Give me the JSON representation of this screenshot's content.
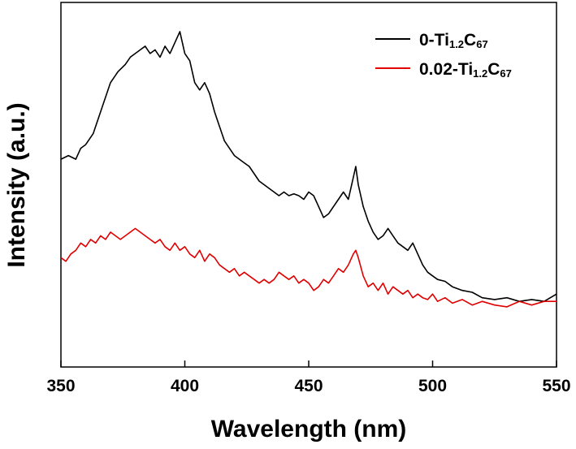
{
  "chart_data": {
    "type": "line",
    "xlabel": "Wavelength (nm)",
    "ylabel": "Intensity (a.u.)",
    "xlim": [
      350,
      550
    ],
    "ylim": [
      0,
      1
    ],
    "x_ticks": [
      350,
      400,
      450,
      500,
      550
    ],
    "y_ticks_labeled": false,
    "grid": false,
    "legend_position": "top-right",
    "series": [
      {
        "name": "0-Ti1.2C67",
        "name_parts": {
          "prefix": "0-Ti",
          "sub1": "1.2",
          "mid": "C",
          "sub2": "67"
        },
        "color": "#000000",
        "points": [
          [
            350,
            0.57
          ],
          [
            353,
            0.58
          ],
          [
            356,
            0.57
          ],
          [
            358,
            0.6
          ],
          [
            360,
            0.61
          ],
          [
            363,
            0.64
          ],
          [
            366,
            0.7
          ],
          [
            368,
            0.74
          ],
          [
            370,
            0.78
          ],
          [
            373,
            0.81
          ],
          [
            376,
            0.83
          ],
          [
            378,
            0.85
          ],
          [
            380,
            0.86
          ],
          [
            382,
            0.87
          ],
          [
            384,
            0.88
          ],
          [
            386,
            0.86
          ],
          [
            388,
            0.87
          ],
          [
            390,
            0.85
          ],
          [
            392,
            0.88
          ],
          [
            394,
            0.86
          ],
          [
            396,
            0.89
          ],
          [
            398,
            0.92
          ],
          [
            400,
            0.86
          ],
          [
            402,
            0.84
          ],
          [
            404,
            0.78
          ],
          [
            406,
            0.76
          ],
          [
            408,
            0.78
          ],
          [
            410,
            0.75
          ],
          [
            412,
            0.7
          ],
          [
            414,
            0.66
          ],
          [
            416,
            0.62
          ],
          [
            418,
            0.6
          ],
          [
            420,
            0.58
          ],
          [
            422,
            0.57
          ],
          [
            424,
            0.56
          ],
          [
            426,
            0.55
          ],
          [
            428,
            0.53
          ],
          [
            430,
            0.51
          ],
          [
            432,
            0.5
          ],
          [
            434,
            0.49
          ],
          [
            436,
            0.48
          ],
          [
            438,
            0.47
          ],
          [
            440,
            0.48
          ],
          [
            442,
            0.47
          ],
          [
            444,
            0.475
          ],
          [
            446,
            0.47
          ],
          [
            448,
            0.46
          ],
          [
            450,
            0.48
          ],
          [
            452,
            0.47
          ],
          [
            454,
            0.44
          ],
          [
            456,
            0.41
          ],
          [
            458,
            0.42
          ],
          [
            460,
            0.44
          ],
          [
            462,
            0.46
          ],
          [
            464,
            0.48
          ],
          [
            466,
            0.46
          ],
          [
            468,
            0.52
          ],
          [
            469,
            0.55
          ],
          [
            470,
            0.5
          ],
          [
            472,
            0.44
          ],
          [
            474,
            0.4
          ],
          [
            476,
            0.37
          ],
          [
            478,
            0.35
          ],
          [
            480,
            0.36
          ],
          [
            482,
            0.38
          ],
          [
            484,
            0.36
          ],
          [
            486,
            0.34
          ],
          [
            488,
            0.33
          ],
          [
            490,
            0.32
          ],
          [
            492,
            0.34
          ],
          [
            494,
            0.31
          ],
          [
            496,
            0.28
          ],
          [
            498,
            0.26
          ],
          [
            500,
            0.25
          ],
          [
            502,
            0.24
          ],
          [
            505,
            0.235
          ],
          [
            508,
            0.22
          ],
          [
            512,
            0.21
          ],
          [
            516,
            0.205
          ],
          [
            520,
            0.19
          ],
          [
            525,
            0.185
          ],
          [
            530,
            0.19
          ],
          [
            535,
            0.18
          ],
          [
            540,
            0.185
          ],
          [
            545,
            0.18
          ],
          [
            550,
            0.2
          ]
        ]
      },
      {
        "name": "0.02-Ti1.2C67",
        "name_parts": {
          "prefix": "0.02-Ti",
          "sub1": "1.2",
          "mid": "C",
          "sub2": "67"
        },
        "color": "#e00000",
        "points": [
          [
            350,
            0.3
          ],
          [
            352,
            0.29
          ],
          [
            354,
            0.31
          ],
          [
            356,
            0.32
          ],
          [
            358,
            0.34
          ],
          [
            360,
            0.33
          ],
          [
            362,
            0.35
          ],
          [
            364,
            0.34
          ],
          [
            366,
            0.36
          ],
          [
            368,
            0.35
          ],
          [
            370,
            0.37
          ],
          [
            372,
            0.36
          ],
          [
            374,
            0.35
          ],
          [
            376,
            0.36
          ],
          [
            378,
            0.37
          ],
          [
            380,
            0.38
          ],
          [
            382,
            0.37
          ],
          [
            384,
            0.36
          ],
          [
            386,
            0.35
          ],
          [
            388,
            0.34
          ],
          [
            390,
            0.35
          ],
          [
            392,
            0.33
          ],
          [
            394,
            0.32
          ],
          [
            396,
            0.34
          ],
          [
            398,
            0.32
          ],
          [
            400,
            0.33
          ],
          [
            402,
            0.31
          ],
          [
            404,
            0.3
          ],
          [
            406,
            0.32
          ],
          [
            408,
            0.29
          ],
          [
            410,
            0.31
          ],
          [
            412,
            0.3
          ],
          [
            414,
            0.28
          ],
          [
            416,
            0.27
          ],
          [
            418,
            0.26
          ],
          [
            420,
            0.27
          ],
          [
            422,
            0.25
          ],
          [
            424,
            0.26
          ],
          [
            426,
            0.25
          ],
          [
            428,
            0.24
          ],
          [
            430,
            0.23
          ],
          [
            432,
            0.24
          ],
          [
            434,
            0.23
          ],
          [
            436,
            0.24
          ],
          [
            438,
            0.26
          ],
          [
            440,
            0.25
          ],
          [
            442,
            0.24
          ],
          [
            444,
            0.25
          ],
          [
            446,
            0.23
          ],
          [
            448,
            0.24
          ],
          [
            450,
            0.23
          ],
          [
            452,
            0.21
          ],
          [
            454,
            0.22
          ],
          [
            456,
            0.24
          ],
          [
            458,
            0.23
          ],
          [
            460,
            0.25
          ],
          [
            462,
            0.27
          ],
          [
            464,
            0.26
          ],
          [
            466,
            0.28
          ],
          [
            468,
            0.31
          ],
          [
            469,
            0.32
          ],
          [
            470,
            0.3
          ],
          [
            472,
            0.25
          ],
          [
            474,
            0.22
          ],
          [
            476,
            0.23
          ],
          [
            478,
            0.21
          ],
          [
            480,
            0.23
          ],
          [
            482,
            0.2
          ],
          [
            484,
            0.22
          ],
          [
            486,
            0.21
          ],
          [
            488,
            0.2
          ],
          [
            490,
            0.21
          ],
          [
            492,
            0.19
          ],
          [
            494,
            0.2
          ],
          [
            496,
            0.19
          ],
          [
            498,
            0.185
          ],
          [
            500,
            0.2
          ],
          [
            502,
            0.18
          ],
          [
            505,
            0.19
          ],
          [
            508,
            0.175
          ],
          [
            512,
            0.185
          ],
          [
            516,
            0.17
          ],
          [
            520,
            0.18
          ],
          [
            525,
            0.17
          ],
          [
            530,
            0.165
          ],
          [
            535,
            0.18
          ],
          [
            540,
            0.17
          ],
          [
            545,
            0.18
          ],
          [
            550,
            0.18
          ]
        ]
      }
    ]
  }
}
